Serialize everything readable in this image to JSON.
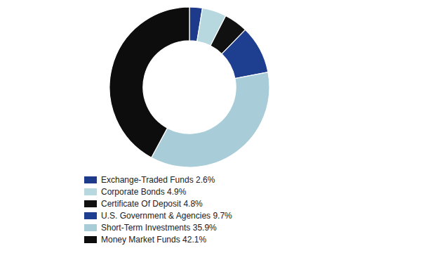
{
  "chart_data": {
    "type": "donut",
    "categories": [
      "Exchange-Traded Funds 2.6%",
      "Corporate Bonds 4.9%",
      "Certificate Of Deposit 4.8%",
      "U.S. Government & Agencies 9.7%",
      "Short-Term Investments 35.9%",
      "Money Market Funds 42.1%"
    ],
    "values": [
      2.6,
      4.9,
      4.8,
      9.7,
      35.9,
      42.1
    ],
    "colors": [
      "#1e3a8a",
      "#b8d8e0",
      "#111111",
      "#1e3f8f",
      "#a8cdd8",
      "#0d0d0d"
    ],
    "legend": "bottom"
  }
}
